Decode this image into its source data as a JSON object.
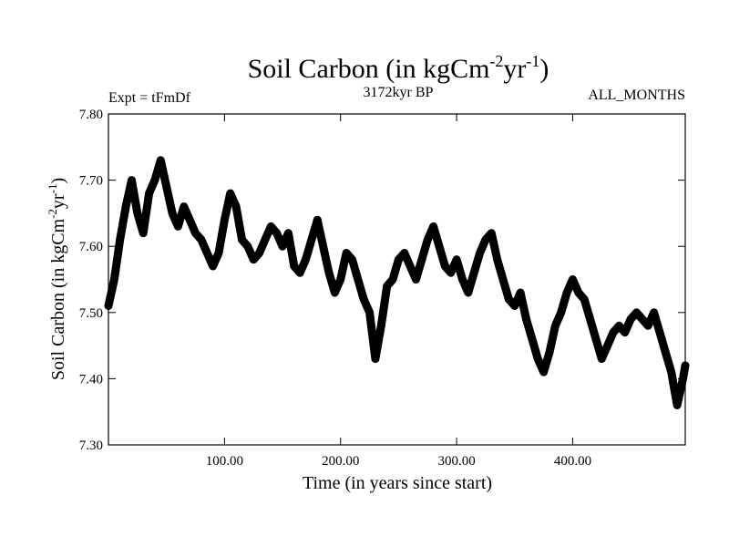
{
  "chart_data": {
    "type": "line",
    "title": {
      "base": "Soil Carbon (in kgCm",
      "exp1": "-2",
      "mid": "yr",
      "exp2": "-1",
      "end": ")"
    },
    "subtitle_left": "Expt = tFmDf",
    "subtitle_center": "3172kyr BP",
    "subtitle_right": "ALL_MONTHS",
    "xlabel": "Time (in years since start)",
    "ylabel": {
      "base": "Soil Carbon (in kgCm",
      "exp1": "-2",
      "mid": "yr",
      "exp2": "-1",
      "end": ")"
    },
    "xlim": [
      0,
      497
    ],
    "ylim": [
      7.3,
      7.8
    ],
    "xticks": [
      {
        "value": 100,
        "label": "100.00"
      },
      {
        "value": 200,
        "label": "200.00"
      },
      {
        "value": 300,
        "label": "300.00"
      },
      {
        "value": 400,
        "label": "400.00"
      }
    ],
    "yticks": [
      {
        "value": 7.3,
        "label": "7.30"
      },
      {
        "value": 7.4,
        "label": "7.40"
      },
      {
        "value": 7.5,
        "label": "7.50"
      },
      {
        "value": 7.6,
        "label": "7.60"
      },
      {
        "value": 7.7,
        "label": "7.70"
      },
      {
        "value": 7.8,
        "label": "7.80"
      }
    ],
    "grid": false,
    "line_color": "#000000",
    "series": [
      {
        "x": [
          0,
          5,
          10,
          15,
          20,
          25,
          30,
          35,
          40,
          45,
          50,
          55,
          60,
          65,
          70,
          75,
          80,
          85,
          90,
          95,
          100,
          105,
          110,
          115,
          120,
          125,
          130,
          135,
          140,
          145,
          150,
          155,
          160,
          165,
          170,
          175,
          180,
          185,
          190,
          195,
          200,
          205,
          210,
          215,
          220,
          225,
          230,
          235,
          240,
          245,
          250,
          255,
          260,
          265,
          270,
          275,
          280,
          285,
          290,
          295,
          300,
          305,
          310,
          315,
          320,
          325,
          330,
          335,
          340,
          345,
          350,
          355,
          360,
          365,
          370,
          375,
          380,
          385,
          390,
          395,
          400,
          405,
          410,
          415,
          420,
          425,
          430,
          435,
          440,
          445,
          450,
          455,
          460,
          465,
          470,
          475,
          480,
          485,
          490,
          495,
          497
        ],
        "y": [
          7.51,
          7.55,
          7.61,
          7.66,
          7.7,
          7.65,
          7.62,
          7.68,
          7.7,
          7.73,
          7.69,
          7.65,
          7.63,
          7.66,
          7.64,
          7.62,
          7.61,
          7.59,
          7.57,
          7.59,
          7.64,
          7.68,
          7.66,
          7.61,
          7.6,
          7.58,
          7.59,
          7.61,
          7.63,
          7.62,
          7.6,
          7.62,
          7.57,
          7.56,
          7.58,
          7.61,
          7.64,
          7.6,
          7.56,
          7.53,
          7.55,
          7.59,
          7.58,
          7.55,
          7.52,
          7.5,
          7.43,
          7.48,
          7.54,
          7.55,
          7.58,
          7.59,
          7.57,
          7.55,
          7.58,
          7.61,
          7.63,
          7.6,
          7.57,
          7.56,
          7.58,
          7.55,
          7.53,
          7.56,
          7.59,
          7.61,
          7.62,
          7.58,
          7.55,
          7.52,
          7.51,
          7.53,
          7.49,
          7.46,
          7.43,
          7.41,
          7.44,
          7.48,
          7.5,
          7.53,
          7.55,
          7.53,
          7.52,
          7.49,
          7.46,
          7.43,
          7.45,
          7.47,
          7.48,
          7.47,
          7.49,
          7.5,
          7.49,
          7.48,
          7.5,
          7.47,
          7.44,
          7.41,
          7.36,
          7.4,
          7.42
        ]
      }
    ]
  }
}
